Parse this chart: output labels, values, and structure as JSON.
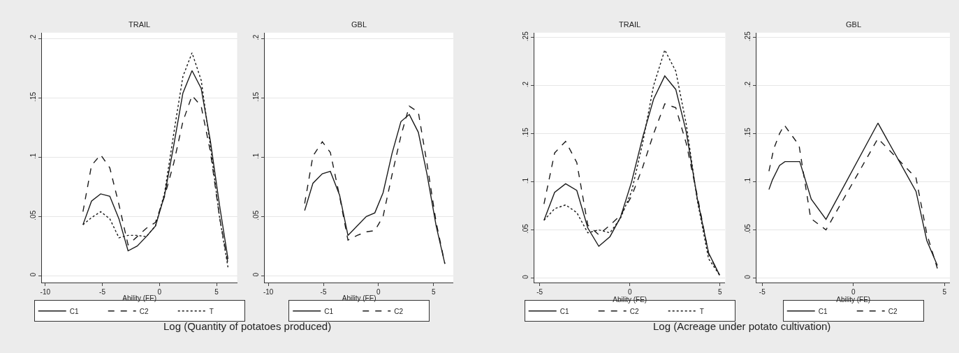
{
  "chart_data": [
    {
      "type": "line",
      "title": "TRAIL",
      "xlabel": "Ability (FE)",
      "xlim": [
        -10.3,
        6.8
      ],
      "ylim": [
        -0.006,
        0.205
      ],
      "xticks": [
        -10,
        -5,
        0,
        5
      ],
      "yticks": [
        0,
        {
          "value": 0.05,
          "label": ".05"
        },
        {
          "value": 0.1,
          "label": ".1"
        },
        {
          "value": 0.15,
          "label": ".15"
        },
        {
          "value": 0.2,
          "label": ".2"
        }
      ],
      "grid": "y",
      "legend": "bottom",
      "annotations": [
        "Log (Quantity of potatoes produced)"
      ],
      "x": [
        -6.7,
        -5.95,
        -5.15,
        -4.35,
        -3.55,
        -2.75,
        -1.95,
        -1.15,
        -0.35,
        0.45,
        1.25,
        2.05,
        2.85,
        3.65,
        4.45,
        5.25,
        6.0
      ],
      "series": [
        {
          "name": "C1",
          "color": "#1a1a1a",
          "line_style": "solid",
          "values": [
            0.043,
            0.063,
            0.069,
            0.067,
            0.048,
            0.021,
            0.025,
            0.033,
            0.042,
            0.068,
            0.11,
            0.154,
            0.173,
            0.158,
            0.114,
            0.06,
            0.014
          ]
        },
        {
          "name": "C2",
          "color": "#1a1a1a",
          "line_style": "dashed",
          "values": [
            0.054,
            0.093,
            0.102,
            0.091,
            0.06,
            0.026,
            0.033,
            0.04,
            0.045,
            0.067,
            0.095,
            0.13,
            0.152,
            0.143,
            0.105,
            0.05,
            0.01
          ]
        },
        {
          "name": "T",
          "color": "#1a1a1a",
          "line_style": "dotted",
          "values": [
            0.043,
            0.049,
            0.054,
            0.048,
            0.032,
            0.034,
            0.034,
            0.033,
            0.042,
            0.07,
            0.12,
            0.168,
            0.188,
            0.165,
            0.11,
            0.05,
            0.007
          ]
        }
      ]
    },
    {
      "type": "line",
      "title": "GBL",
      "xlabel": "Ability (FE)",
      "xlim": [
        -10.3,
        6.8
      ],
      "ylim": [
        -0.006,
        0.205
      ],
      "xticks": [
        -10,
        -5,
        0,
        5
      ],
      "yticks": [
        0,
        {
          "value": 0.05,
          "label": ".05"
        },
        {
          "value": 0.1,
          "label": ".1"
        },
        {
          "value": 0.15,
          "label": ".15"
        },
        {
          "value": 0.2,
          "label": ".2"
        }
      ],
      "grid": "y",
      "legend": "bottom",
      "x": [
        -6.7,
        -5.95,
        -5.1,
        -4.37,
        -3.53,
        -2.77,
        -1.93,
        -1.1,
        -0.33,
        0.42,
        1.23,
        2.04,
        2.8,
        3.62,
        4.4,
        5.24,
        6.03
      ],
      "series": [
        {
          "name": "C1",
          "color": "#1a1a1a",
          "line_style": "solid",
          "values": [
            0.055,
            0.078,
            0.086,
            0.088,
            0.068,
            0.034,
            0.042,
            0.05,
            0.053,
            0.07,
            0.103,
            0.13,
            0.136,
            0.121,
            0.086,
            0.042,
            0.01
          ]
        },
        {
          "name": "C2",
          "color": "#1a1a1a",
          "line_style": "dashed",
          "values": [
            0.061,
            0.101,
            0.113,
            0.104,
            0.067,
            0.03,
            0.034,
            0.037,
            0.038,
            0.05,
            0.085,
            0.118,
            0.143,
            0.138,
            0.095,
            0.045,
            0.01
          ]
        }
      ]
    },
    {
      "type": "line",
      "title": "TRAIL",
      "xlabel": "Ability (FE)",
      "xlim": [
        -5.3,
        5.3
      ],
      "ylim": [
        -0.005,
        0.255
      ],
      "xticks": [
        -5,
        0,
        5
      ],
      "yticks": [
        0,
        {
          "value": 0.05,
          "label": ".05"
        },
        {
          "value": 0.1,
          "label": ".1"
        },
        {
          "value": 0.15,
          "label": ".15"
        },
        {
          "value": 0.2,
          "label": ".2"
        },
        {
          "value": 0.25,
          "label": ".25"
        }
      ],
      "grid": "y",
      "legend": "bottom",
      "annotations": [
        "Log (Acreage under potato cultivation)"
      ],
      "x": [
        -4.76,
        -4.17,
        -3.56,
        -2.94,
        -2.33,
        -1.72,
        -1.1,
        -0.52,
        0.1,
        0.71,
        1.32,
        1.94,
        2.55,
        3.13,
        3.75,
        4.37,
        4.98
      ],
      "series": [
        {
          "name": "C1",
          "color": "#1a1a1a",
          "line_style": "solid",
          "values": [
            0.06,
            0.089,
            0.098,
            0.091,
            0.052,
            0.033,
            0.043,
            0.063,
            0.1,
            0.146,
            0.186,
            0.21,
            0.196,
            0.152,
            0.082,
            0.026,
            0.003
          ]
        },
        {
          "name": "C2",
          "color": "#1a1a1a",
          "line_style": "dashed",
          "values": [
            0.077,
            0.13,
            0.142,
            0.12,
            0.055,
            0.045,
            0.055,
            0.065,
            0.085,
            0.115,
            0.15,
            0.181,
            0.177,
            0.14,
            0.085,
            0.025,
            0.003
          ]
        },
        {
          "name": "T",
          "color": "#1a1a1a",
          "line_style": "dotted",
          "values": [
            0.06,
            0.072,
            0.076,
            0.068,
            0.047,
            0.05,
            0.047,
            0.062,
            0.09,
            0.14,
            0.2,
            0.237,
            0.215,
            0.16,
            0.08,
            0.02,
            0.003
          ]
        }
      ]
    },
    {
      "type": "line",
      "title": "GBL",
      "xlabel": "Ability (FE)",
      "xlim": [
        -5.3,
        5.3
      ],
      "ylim": [
        -0.005,
        0.255
      ],
      "xticks": [
        -5,
        0,
        5
      ],
      "yticks": [
        0,
        {
          "value": 0.05,
          "label": ".05"
        },
        {
          "value": 0.1,
          "label": ".1"
        },
        {
          "value": 0.15,
          "label": ".15"
        },
        {
          "value": 0.2,
          "label": ".2"
        },
        {
          "value": 0.25,
          "label": ".25"
        }
      ],
      "grid": "y",
      "legend": "bottom",
      "series": [
        {
          "name": "C1",
          "color": "#1a1a1a",
          "line_style": "solid",
          "x": [
            -4.63,
            -4.44,
            -4.05,
            -3.75,
            -2.94,
            -2.31,
            -1.5,
            1.35,
            3.44,
            4.03,
            4.61
          ],
          "values": [
            0.092,
            0.102,
            0.117,
            0.121,
            0.121,
            0.082,
            0.061,
            0.161,
            0.09,
            0.039,
            0.013
          ]
        },
        {
          "name": "C2",
          "color": "#1a1a1a",
          "line_style": "dashed",
          "x": [
            -4.63,
            -4.37,
            -4.05,
            -3.79,
            -2.98,
            -2.34,
            -1.5,
            1.35,
            3.44,
            4.03,
            4.61
          ],
          "values": [
            0.111,
            0.134,
            0.15,
            0.159,
            0.138,
            0.062,
            0.05,
            0.145,
            0.104,
            0.046,
            0.01
          ]
        }
      ]
    }
  ]
}
